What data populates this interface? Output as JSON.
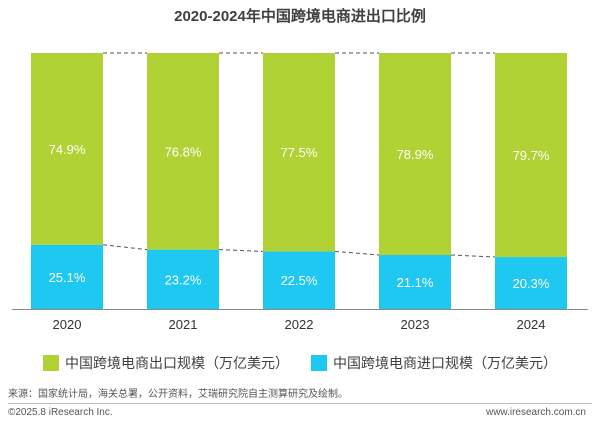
{
  "chart_data": {
    "type": "bar",
    "stacked": true,
    "title": "2020-2024年中国跨境电商进出口比例",
    "categories": [
      "2020",
      "2021",
      "2022",
      "2023",
      "2024"
    ],
    "series": [
      {
        "name": "中国跨境电商进口规模（万亿美元）",
        "values": [
          25.1,
          23.2,
          22.5,
          21.1,
          20.3
        ],
        "labels": [
          "25.1%",
          "23.2%",
          "22.5%",
          "21.1%",
          "20.3%"
        ],
        "color": "#1ec8f0"
      },
      {
        "name": "中国跨境电商出口规模（万亿美元）",
        "values": [
          74.9,
          76.8,
          77.5,
          78.9,
          79.7
        ],
        "labels": [
          "74.9%",
          "76.8%",
          "77.5%",
          "78.9%",
          "79.7%"
        ],
        "color": "#b1d234"
      }
    ],
    "ylim": [
      0,
      100
    ],
    "grid": false,
    "legend_position": "bottom"
  },
  "footer": {
    "source": "来源：国家统计局，海关总署，公开资料，艾瑞研究院自主测算研究及绘制。",
    "copyright": "©2025.8 iResearch Inc.",
    "website": "www.iresearch.com.cn"
  }
}
